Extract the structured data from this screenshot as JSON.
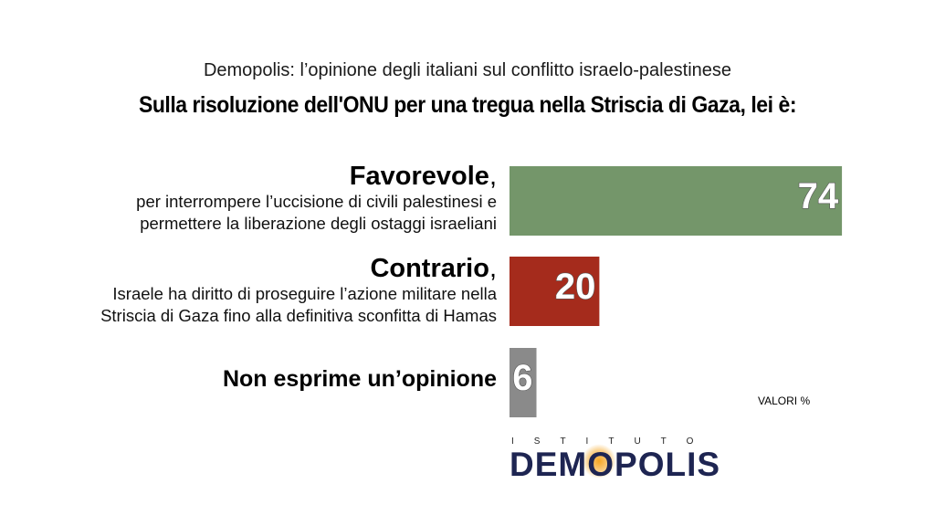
{
  "header": {
    "subtitle": "Demopolis: l’opinione degli italiani sul conflitto israelo-palestinese",
    "title": "Sulla risoluzione dell'ONU per una tregua nella Striscia di Gaza, lei è:"
  },
  "rows": [
    {
      "head": "Favorevole",
      "comma": ",",
      "desc1": "per interrompere l’uccisione di civili palestinesi e",
      "desc2": "permettere la liberazione degli ostaggi israeliani"
    },
    {
      "head": "Contrario",
      "comma": ",",
      "desc1": "Israele ha diritto di proseguire l’azione militare nella",
      "desc2": "Striscia di Gaza fino alla definitiva sconfitta di Hamas"
    },
    {
      "head": "Non esprime un’opinione"
    }
  ],
  "note": "VALORI %",
  "logo": {
    "top": "ISTITUTO",
    "main_pre": "DEM",
    "main_o": "O",
    "main_post": "POLIS"
  },
  "chart_data": {
    "type": "bar",
    "orientation": "horizontal",
    "categories": [
      "Favorevole",
      "Contrario",
      "Non esprime un’opinione"
    ],
    "values": [
      74,
      20,
      6
    ],
    "colors": [
      "#74966a",
      "#a52b1c",
      "#8a8a8a"
    ],
    "unit": "VALORI %"
  }
}
